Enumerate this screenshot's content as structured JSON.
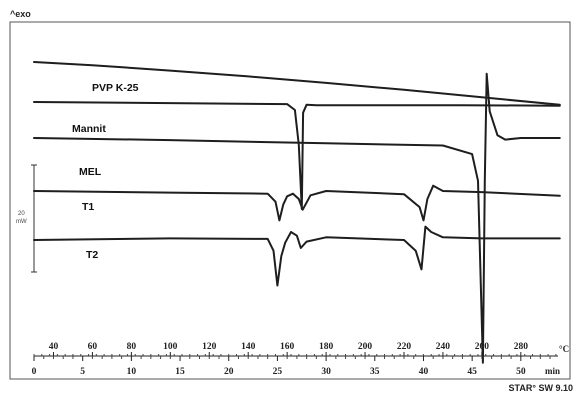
{
  "chart_data": {
    "type": "line",
    "title": "",
    "y_indicator": "^exo",
    "x_unit_temperature": "°C",
    "x_unit_time": "min",
    "temperature_ticks": [
      40,
      60,
      80,
      100,
      120,
      140,
      160,
      180,
      200,
      220,
      240,
      260,
      280
    ],
    "time_ticks": [
      0,
      5,
      10,
      15,
      20,
      25,
      30,
      35,
      40,
      45,
      50
    ],
    "scale_bar": {
      "value": 20,
      "unit": "mW"
    },
    "software_label": "STAR° SW 9.10",
    "grid": false,
    "series": [
      {
        "name": "PVP K-25",
        "x": [
          30,
          60,
          100,
          140,
          180,
          220,
          260,
          300
        ],
        "y": [
          0,
          -0.6,
          -1.6,
          -2.7,
          -3.9,
          -5.2,
          -6.6,
          -8.0
        ]
      },
      {
        "name": "Mannit",
        "x": [
          30,
          100,
          160,
          164,
          166,
          167.5,
          168.2,
          170,
          175,
          200,
          250,
          300
        ],
        "y": [
          0,
          -0.2,
          -0.4,
          -1.5,
          -8,
          -20,
          -2,
          -0.5,
          -0.6,
          -0.6,
          -0.6,
          -0.7
        ]
      },
      {
        "name": "MEL",
        "x": [
          30,
          100,
          180,
          240,
          255,
          258,
          260.5,
          261.5,
          262.5,
          264,
          268,
          272,
          280,
          300
        ],
        "y": [
          0,
          -0.4,
          -1.0,
          -1.4,
          -3.0,
          -8,
          -42,
          -8,
          12,
          5,
          0.5,
          -0.3,
          0,
          0
        ]
      },
      {
        "name": "T1",
        "x": [
          30,
          100,
          150,
          154,
          156,
          158,
          160,
          163,
          166,
          168,
          172,
          180,
          220,
          228,
          230,
          232,
          235,
          240,
          260,
          300
        ],
        "y": [
          0,
          -0.3,
          -0.5,
          -2,
          -5.5,
          -2.5,
          -1,
          -0.5,
          -1.5,
          -3.5,
          -0.8,
          0,
          -0.6,
          -3,
          -5.5,
          -1.5,
          1,
          0,
          -0.2,
          -0.9
        ]
      },
      {
        "name": "T2",
        "x": [
          30,
          100,
          150,
          153,
          155,
          157,
          159,
          162,
          165,
          167,
          170,
          180,
          220,
          226,
          229,
          231,
          234,
          240,
          260,
          300
        ],
        "y": [
          0,
          0.3,
          0.2,
          -2,
          -8.5,
          -3,
          -0.5,
          1.5,
          0.8,
          -1.5,
          -0.3,
          0.5,
          0,
          -2,
          -5.5,
          2.5,
          1.5,
          0.5,
          0.3,
          0.3
        ]
      }
    ]
  }
}
